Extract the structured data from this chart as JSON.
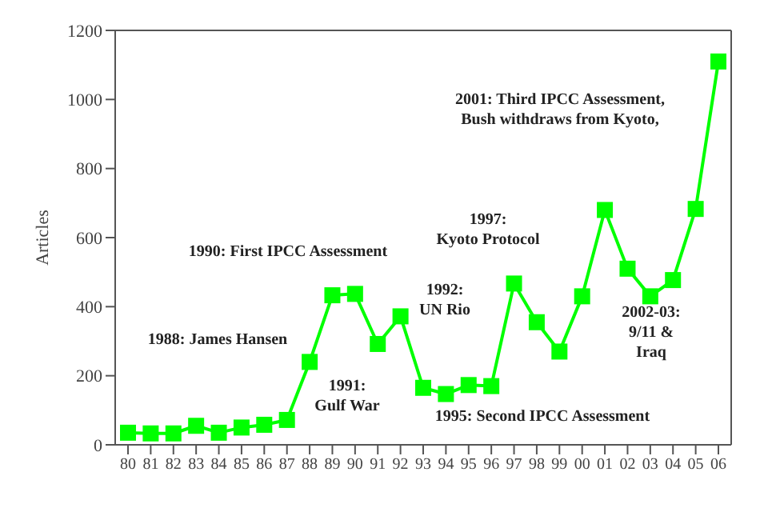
{
  "chart_data": {
    "type": "line",
    "ylabel": "Articles",
    "categories": [
      "80",
      "81",
      "82",
      "83",
      "84",
      "85",
      "86",
      "87",
      "88",
      "89",
      "90",
      "91",
      "92",
      "93",
      "94",
      "95",
      "96",
      "97",
      "98",
      "99",
      "00",
      "01",
      "02",
      "03",
      "04",
      "05",
      "06"
    ],
    "series": [
      {
        "color": "#00ff00",
        "values": [
          35,
          33,
          33,
          55,
          35,
          50,
          58,
          72,
          240,
          433,
          437,
          292,
          372,
          165,
          147,
          173,
          170,
          467,
          355,
          270,
          430,
          680,
          510,
          430,
          477,
          683,
          1110
        ]
      }
    ],
    "ylim": [
      0,
      1200
    ],
    "yticks": [
      0,
      200,
      400,
      600,
      800,
      1000,
      1200
    ],
    "grid": false,
    "legend": false,
    "marker": "square",
    "line_style": "solid",
    "annotations": [
      "2001: Third IPCC Assessment,\nBush withdraws from Kyoto,",
      "1997:\nKyoto Protocol",
      "1990: First IPCC Assessment",
      "1992:\nUN Rio",
      "1988: James Hansen",
      "1991:\nGulf War",
      "1995: Second IPCC Assessment",
      "2002-03:\n9/11 &\nIraq"
    ]
  }
}
